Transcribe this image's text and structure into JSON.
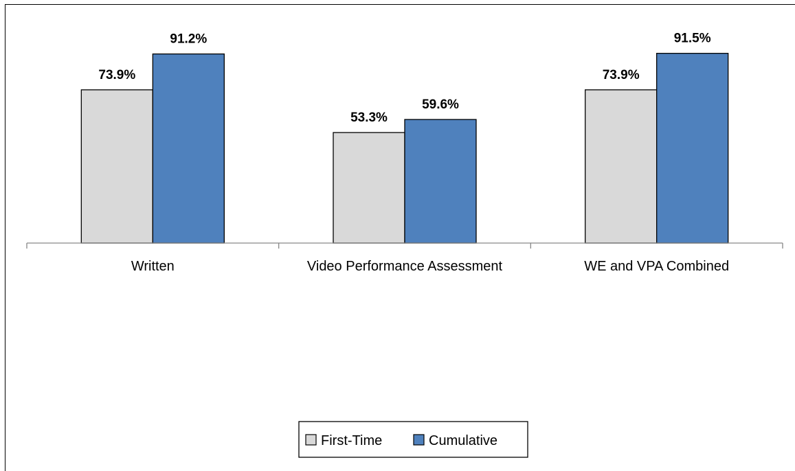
{
  "chart_data": {
    "type": "bar",
    "categories": [
      "Written",
      "Video Performance Assessment",
      "WE and VPA Combined"
    ],
    "series": [
      {
        "name": "First-Time",
        "values": [
          73.9,
          53.3,
          73.9
        ],
        "labels": [
          "73.9%",
          "53.3%",
          "73.9%"
        ],
        "color": "#d9d9d9"
      },
      {
        "name": "Cumulative",
        "values": [
          91.2,
          59.6,
          91.5
        ],
        "labels": [
          "91.2%",
          "59.6%",
          "91.5%"
        ],
        "color": "#4f81bd"
      }
    ],
    "title": "",
    "xlabel": "",
    "ylabel": "",
    "ylim": [
      0,
      100
    ],
    "grid": false,
    "legend_position": "bottom"
  }
}
